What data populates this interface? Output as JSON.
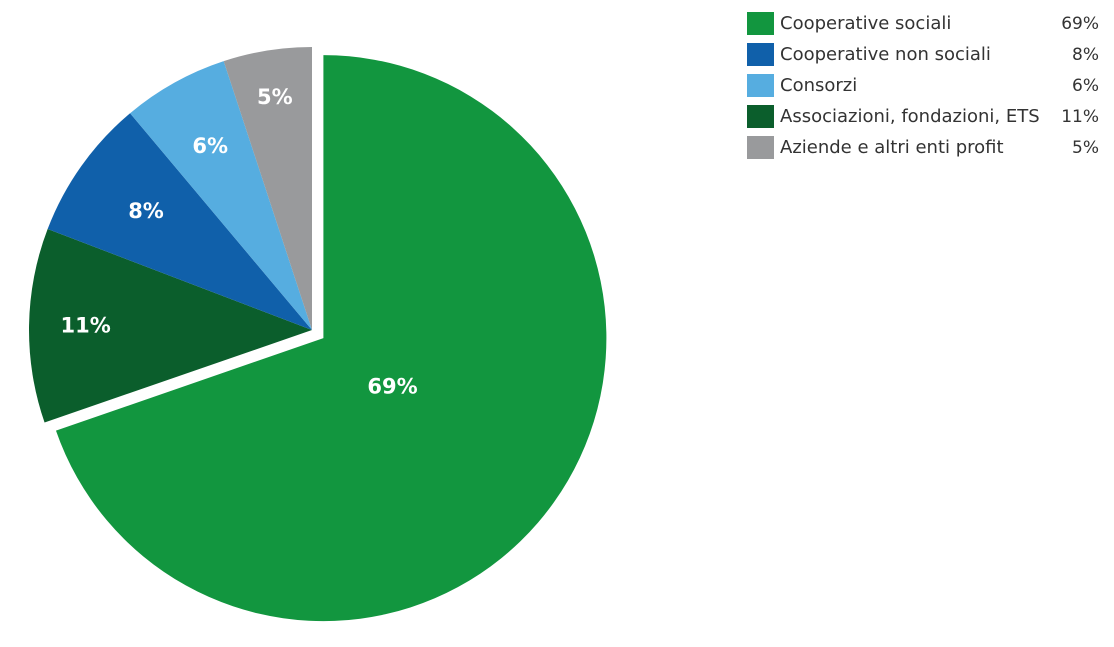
{
  "chart_data": {
    "type": "pie",
    "title": "",
    "categories": [
      "Cooperative sociali",
      "Cooperative non sociali",
      "Consorzi",
      "Associazioni, fondazioni, ETS",
      "Aziende e altri enti profit"
    ],
    "values": [
      69,
      8,
      6,
      11,
      5
    ],
    "value_labels": [
      "69%",
      "8%",
      "6%",
      "11%",
      "5%"
    ],
    "colors": [
      "#12963f",
      "#1060aa",
      "#56ade0",
      "#0b5e2c",
      "#999a9c"
    ],
    "slice_order_clockwise_from_top": [
      "Cooperative sociali",
      "Associazioni, fondazioni, ETS",
      "Cooperative non sociali",
      "Consorzi",
      "Aziende e altri enti profit"
    ],
    "exploded": [
      "Cooperative sociali"
    ],
    "legend_position": "top-right"
  },
  "legend": {
    "items": [
      {
        "label": "Cooperative sociali",
        "value": "69%",
        "color": "#12963f"
      },
      {
        "label": "Cooperative non sociali",
        "value": "8%",
        "color": "#1060aa"
      },
      {
        "label": "Consorzi",
        "value": "6%",
        "color": "#56ade0"
      },
      {
        "label": "Associazioni, fondazioni, ETS",
        "value": "11%",
        "color": "#0b5e2c"
      },
      {
        "label": "Aziende e altri enti profit",
        "value": "5%",
        "color": "#999a9c"
      }
    ]
  }
}
